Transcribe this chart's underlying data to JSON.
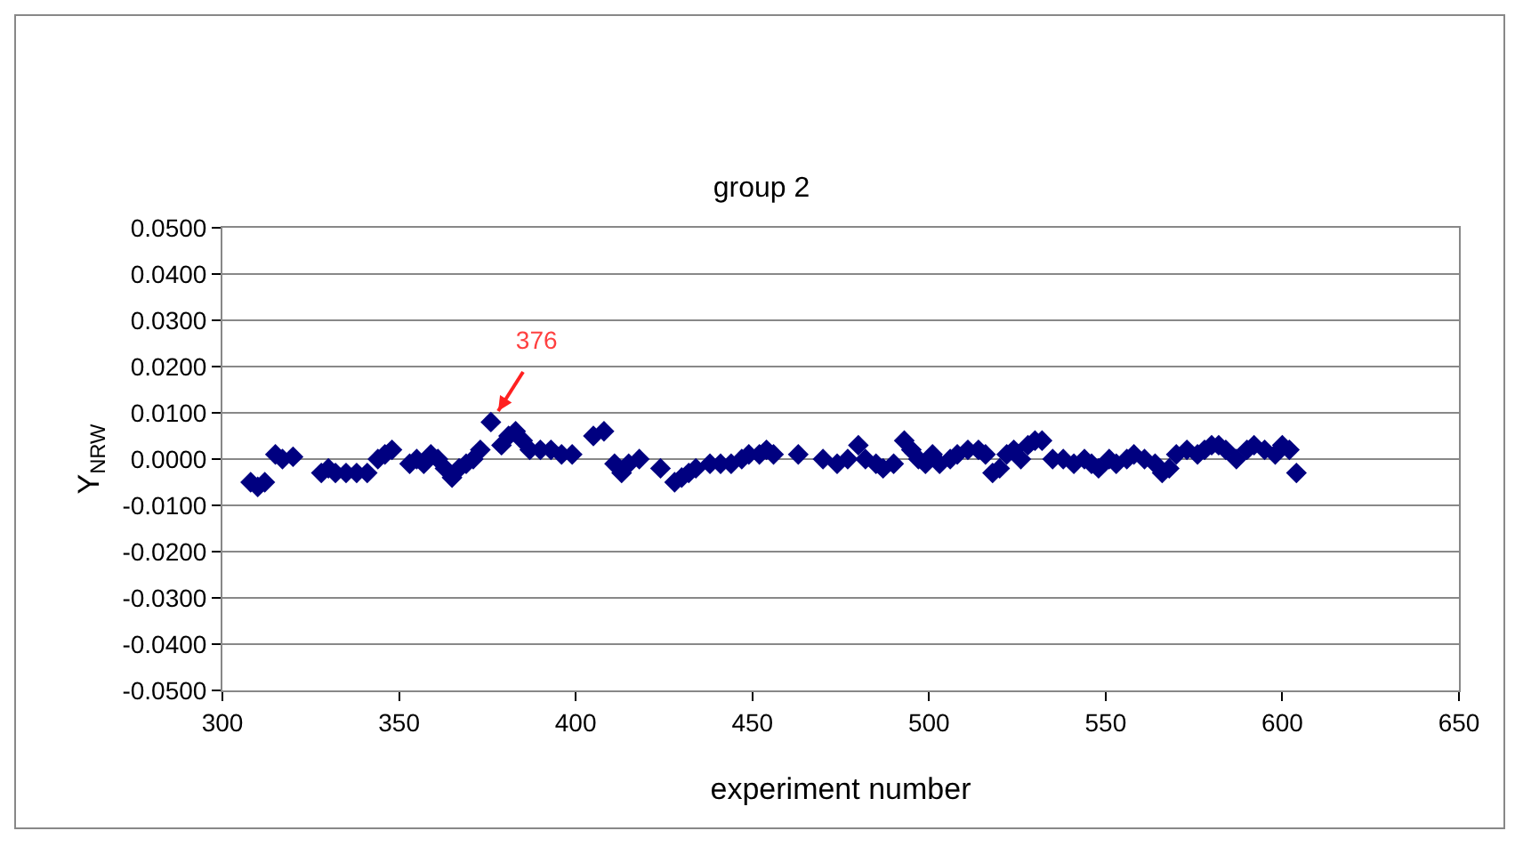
{
  "chart_data": {
    "type": "scatter",
    "title": "group 2",
    "xlabel": "experiment number",
    "ylabel": "Y$_{NRW}$",
    "x": [
      308,
      310,
      312,
      315,
      317,
      320,
      328,
      330,
      332,
      335,
      338,
      341,
      344,
      346,
      348,
      353,
      355,
      357,
      359,
      361,
      363,
      365,
      367,
      369,
      371,
      373,
      376,
      379,
      381,
      383,
      385,
      387,
      390,
      393,
      396,
      399,
      405,
      408,
      411,
      413,
      415,
      418,
      424,
      428,
      430,
      432,
      434,
      438,
      441,
      444,
      447,
      449,
      452,
      454,
      456,
      463,
      470,
      474,
      477,
      480,
      482,
      485,
      487,
      490,
      493,
      495,
      497,
      499,
      501,
      503,
      506,
      508,
      511,
      514,
      516,
      518,
      520,
      522,
      524,
      526,
      528,
      530,
      532,
      535,
      538,
      541,
      544,
      546,
      548,
      551,
      553,
      556,
      558,
      561,
      564,
      566,
      568,
      570,
      573,
      576,
      578,
      580,
      582,
      584,
      587,
      590,
      592,
      595,
      598,
      600,
      602,
      604
    ],
    "series": [
      {
        "color": "#000080",
        "values": [
          -0.005,
          -0.006,
          -0.005,
          0.001,
          0,
          0.0005,
          -0.003,
          -0.002,
          -0.003,
          -0.003,
          -0.003,
          -0.003,
          0,
          0.001,
          0.002,
          -0.001,
          0,
          -0.001,
          0.001,
          0,
          -0.002,
          -0.004,
          -0.002,
          -0.001,
          0,
          0.002,
          0.008,
          0.003,
          0.005,
          0.006,
          0.004,
          0.002,
          0.002,
          0.002,
          0.001,
          0.001,
          0.005,
          0.006,
          -0.001,
          -0.003,
          -0.001,
          0,
          -0.002,
          -0.005,
          -0.004,
          -0.003,
          -0.002,
          -0.001,
          -0.001,
          -0.001,
          0,
          0.001,
          0.001,
          0.002,
          0.001,
          0.001,
          0,
          -0.001,
          0,
          0.003,
          0,
          -0.001,
          -0.002,
          -0.001,
          0.004,
          0.002,
          0,
          -0.001,
          0.001,
          -0.001,
          0,
          0.001,
          0.002,
          0.002,
          0.001,
          -0.003,
          -0.002,
          0.001,
          0.002,
          0,
          0.003,
          0.004,
          0.004,
          0,
          0,
          -0.001,
          0,
          -0.001,
          -0.002,
          0,
          -0.001,
          0,
          0.001,
          0,
          -0.001,
          -0.003,
          -0.002,
          0.001,
          0.002,
          0.001,
          0.002,
          0.003,
          0.003,
          0.002,
          0,
          0.002,
          0.003,
          0.002,
          0.001,
          0.003,
          0.002,
          -0.003
        ]
      }
    ],
    "xlim": [
      300,
      650
    ],
    "xticks": [
      300,
      350,
      400,
      450,
      500,
      550,
      600,
      650
    ],
    "ylim": [
      -0.05,
      0.05
    ],
    "yticks": [
      {
        "value": -0.05,
        "label": "-0.0500"
      },
      {
        "value": -0.04,
        "label": "-0.0400"
      },
      {
        "value": -0.03,
        "label": "-0.0300"
      },
      {
        "value": -0.02,
        "label": "-0.0200"
      },
      {
        "value": -0.01,
        "label": "-0.0100"
      },
      {
        "value": 0,
        "label": "0.0000"
      },
      {
        "value": 0.01,
        "label": "0.0100"
      },
      {
        "value": 0.02,
        "label": "0.0200"
      },
      {
        "value": 0.03,
        "label": "0.0300"
      },
      {
        "value": 0.04,
        "label": "0.0400"
      },
      {
        "value": 0.05,
        "label": "0.0500"
      }
    ],
    "grid": "y",
    "marker": "diamond",
    "annotations": [
      {
        "text": "376",
        "x": 376,
        "y": 0.008
      }
    ]
  }
}
